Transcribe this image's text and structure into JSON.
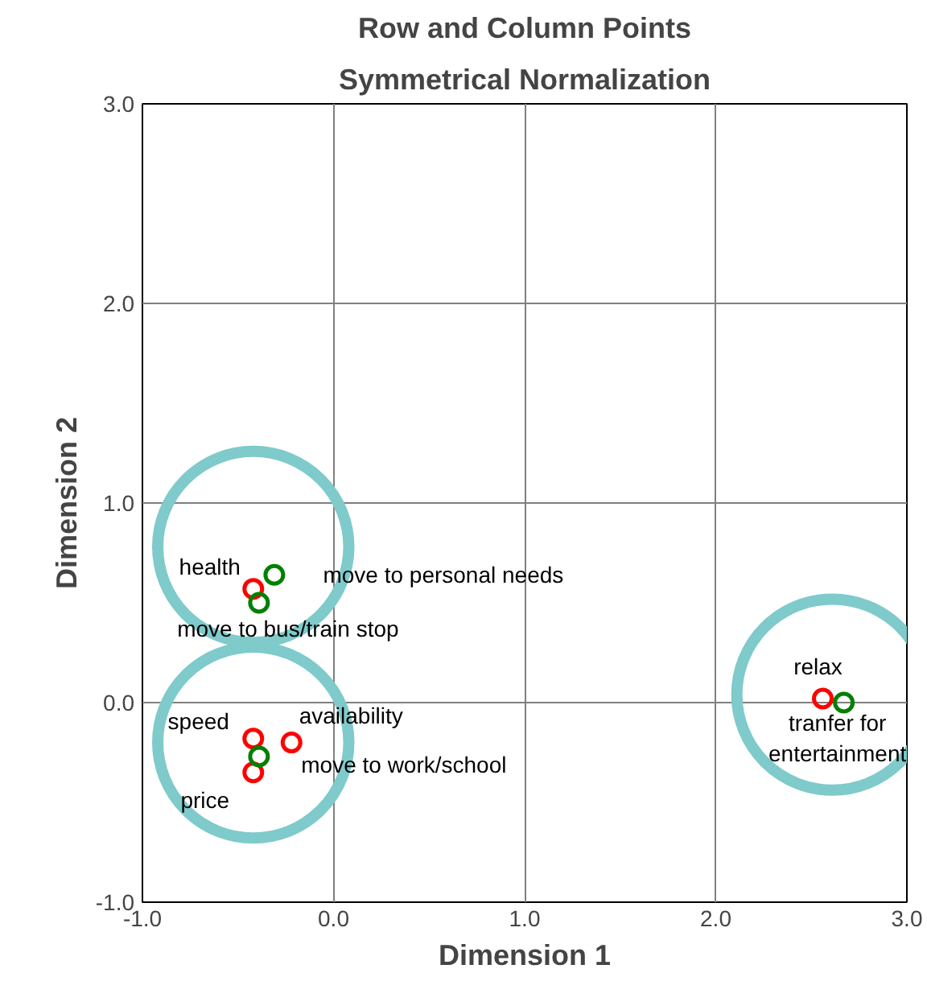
{
  "chart_data": {
    "type": "scatter",
    "title": "Row and Column Points",
    "subtitle": "Symmetrical Normalization",
    "xlabel": "Dimension 1",
    "ylabel": "Dimension 2",
    "xlim": [
      -1,
      3
    ],
    "ylim": [
      -1,
      3
    ],
    "xticks": [
      {
        "value": -1,
        "label": "-1.0"
      },
      {
        "value": 0,
        "label": "0.0"
      },
      {
        "value": 1,
        "label": "1.0"
      },
      {
        "value": 2,
        "label": "2.0"
      },
      {
        "value": 3,
        "label": "3.0"
      }
    ],
    "yticks": [
      {
        "value": -1,
        "label": "-1.0"
      },
      {
        "value": 0,
        "label": "0.0"
      },
      {
        "value": 1,
        "label": "1.0"
      },
      {
        "value": 2,
        "label": "2.0"
      },
      {
        "value": 3,
        "label": "3.0"
      }
    ],
    "grid": true,
    "marker": "circle",
    "series": [
      {
        "type": "bubble",
        "color": "#7fcacb",
        "x": [
          -0.42,
          -0.42,
          2.61
        ],
        "values": [
          0.78,
          -0.2,
          0.04
        ],
        "sizes": [
          1,
          1,
          1
        ]
      },
      {
        "color": "#ff0000",
        "x": [
          -0.42,
          -0.42,
          -0.22,
          -0.42,
          2.56
        ],
        "values": [
          0.57,
          -0.18,
          -0.2,
          -0.35,
          0.02
        ]
      },
      {
        "color": "#008000",
        "x": [
          -0.31,
          -0.39,
          -0.39,
          2.67
        ],
        "values": [
          0.64,
          0.5,
          -0.27,
          0.0
        ]
      }
    ],
    "annotations": [
      {
        "text": "health",
        "x": -0.42,
        "y": 0.57
      },
      {
        "text": "move to personal needs",
        "x": -0.31,
        "y": 0.64
      },
      {
        "text": "move to bus/train stop",
        "x": -0.39,
        "y": 0.5
      },
      {
        "text": "speed",
        "x": -0.42,
        "y": -0.18
      },
      {
        "text": "availability",
        "x": -0.22,
        "y": -0.2
      },
      {
        "text": "move to work/school",
        "x": -0.39,
        "y": -0.27
      },
      {
        "text": "price",
        "x": -0.42,
        "y": -0.35
      },
      {
        "text": "relax",
        "x": 2.56,
        "y": 0.02
      },
      {
        "text": "tranfer for\nentertainment",
        "x": 2.67,
        "y": 0.0
      }
    ]
  }
}
